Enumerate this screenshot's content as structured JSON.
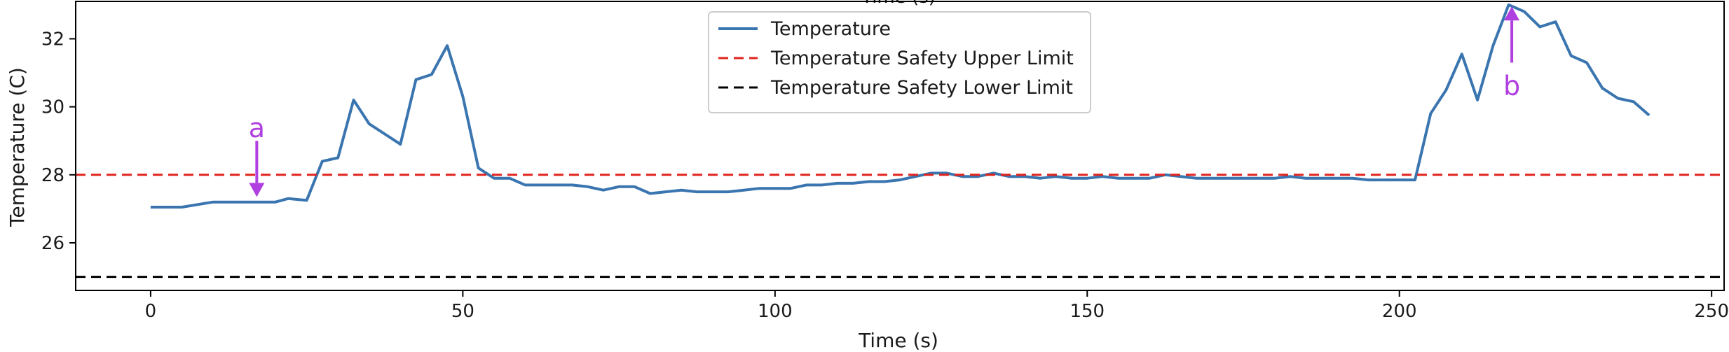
{
  "chart_data": {
    "type": "line",
    "title": "",
    "top_clipped_label": "Time (s)",
    "xlabel": "Time (s)",
    "ylabel": "Temperature (C)",
    "xlim": [
      -12,
      252
    ],
    "ylim": [
      24.6,
      33.1
    ],
    "xticks": [
      0,
      50,
      100,
      150,
      200,
      250
    ],
    "yticks": [
      26,
      28,
      30,
      32
    ],
    "grid": false,
    "legend_position": "top-center",
    "series": [
      {
        "name": "Temperature",
        "color": "#3a75b0",
        "style": "solid",
        "x": [
          0,
          5,
          10,
          15,
          20,
          22,
          25,
          27.5,
          30,
          32.5,
          35,
          37.5,
          40,
          42.5,
          45,
          47.5,
          50,
          52.5,
          55,
          57.5,
          60,
          62.5,
          65,
          67.5,
          70,
          72.5,
          75,
          77.5,
          80,
          82.5,
          85,
          87.5,
          90,
          92.5,
          95,
          97.5,
          100,
          102.5,
          105,
          107.5,
          110,
          112.5,
          115,
          117.5,
          120,
          122.5,
          125,
          127.5,
          130,
          132.5,
          135,
          137.5,
          140,
          142.5,
          145,
          147.5,
          150,
          152.5,
          155,
          157.5,
          160,
          162.5,
          165,
          167.5,
          170,
          172.5,
          175,
          177.5,
          180,
          182.5,
          185,
          187.5,
          190,
          192.5,
          195,
          197.5,
          200,
          202.5,
          205,
          207.5,
          210,
          212.5,
          215,
          217.5,
          220,
          222.5,
          225,
          227.5,
          230,
          232.5,
          235,
          237.5,
          240
        ],
        "values": [
          27.05,
          27.05,
          27.2,
          27.2,
          27.2,
          27.3,
          27.25,
          28.4,
          28.5,
          30.2,
          29.5,
          29.2,
          28.9,
          30.8,
          30.95,
          31.8,
          30.3,
          28.2,
          27.9,
          27.9,
          27.7,
          27.7,
          27.7,
          27.7,
          27.65,
          27.55,
          27.65,
          27.65,
          27.45,
          27.5,
          27.55,
          27.5,
          27.5,
          27.5,
          27.55,
          27.6,
          27.6,
          27.6,
          27.7,
          27.7,
          27.75,
          27.75,
          27.8,
          27.8,
          27.85,
          27.95,
          28.05,
          28.05,
          27.95,
          27.95,
          28.05,
          27.95,
          27.95,
          27.9,
          27.95,
          27.9,
          27.9,
          27.95,
          27.9,
          27.9,
          27.9,
          28.0,
          27.95,
          27.9,
          27.9,
          27.9,
          27.9,
          27.9,
          27.9,
          27.95,
          27.9,
          27.9,
          27.9,
          27.9,
          27.85,
          27.85,
          27.85,
          27.85,
          29.8,
          30.5,
          31.55,
          30.2,
          31.8,
          33.0,
          32.8,
          32.35,
          32.5,
          31.5,
          31.3,
          30.55,
          30.25,
          30.15,
          29.75
        ]
      },
      {
        "name": "Temperature Safety Upper Limit",
        "color": "#e0231c",
        "style": "dashed",
        "constant": 28
      },
      {
        "name": "Temperature Safety Lower Limit",
        "color": "#000000",
        "style": "dashed",
        "constant": 25
      }
    ],
    "annotations": [
      {
        "label": "a",
        "color": "#b03fe0",
        "x": 17,
        "y_from": 29.0,
        "y_to": 27.35,
        "text_y": 29.35
      },
      {
        "label": "b",
        "color": "#b03fe0",
        "x": 218,
        "y_from": 31.3,
        "y_to": 32.95,
        "text_y": 30.6
      }
    ]
  }
}
